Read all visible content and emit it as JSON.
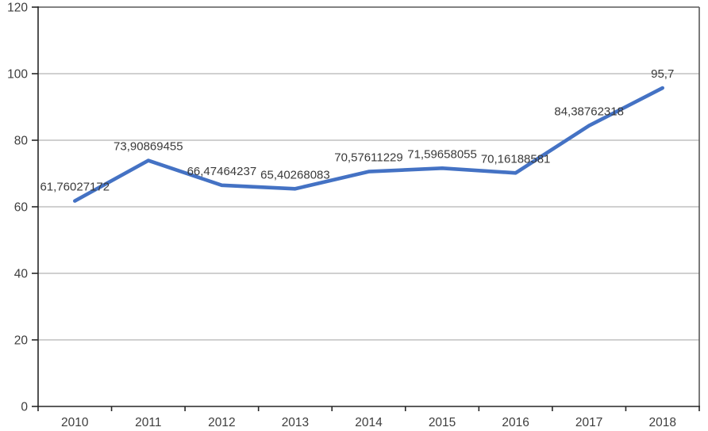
{
  "chart_data": {
    "type": "line",
    "title": "",
    "xlabel": "",
    "ylabel": "",
    "categories": [
      "2010",
      "2011",
      "2012",
      "2013",
      "2014",
      "2015",
      "2016",
      "2017",
      "2018"
    ],
    "series": [
      {
        "name": "series1",
        "values": [
          61.76027172,
          73.90869455,
          66.47464237,
          65.40268083,
          70.57611229,
          71.59658055,
          70.16188581,
          84.38762318,
          95.7
        ],
        "data_labels": [
          "61,76027172",
          "73,90869455",
          "66,47464237",
          "65,40268083",
          "70,57611229",
          "71,59658055",
          "70,16188581",
          "84,38762318",
          "95,7"
        ]
      }
    ],
    "ylim": [
      0,
      120
    ],
    "yticks": [
      0,
      20,
      40,
      60,
      80,
      100,
      120
    ],
    "ytick_labels": [
      "0",
      "20",
      "40",
      "60",
      "80",
      "100",
      "120"
    ],
    "grid": true,
    "legend": "none",
    "colors": {
      "line": "#4472C4",
      "gridline": "#B3B3B3",
      "plot_border": "#595959",
      "axis": "#262626",
      "text": "#3d3d3d"
    }
  }
}
